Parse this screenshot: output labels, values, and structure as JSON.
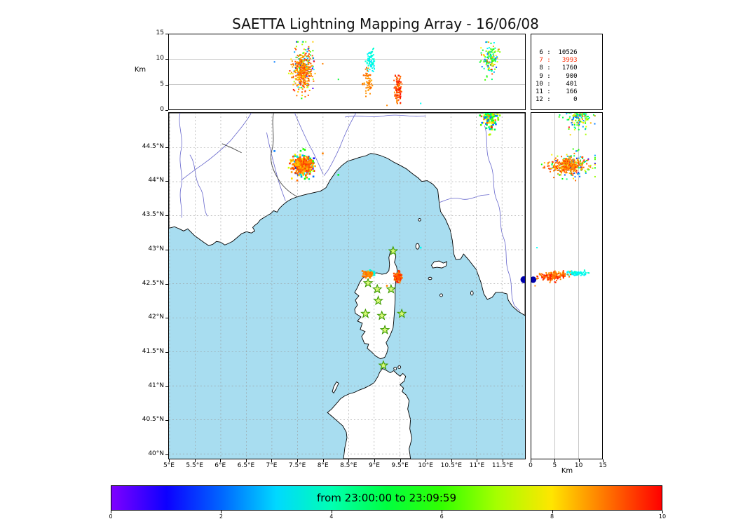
{
  "title": "SAETTA Lightning Mapping Array - 16/06/08",
  "legend": {
    "rows": [
      {
        "stations": "6",
        "count": 10526,
        "highlight": false
      },
      {
        "stations": "7",
        "count": 3993,
        "highlight": true
      },
      {
        "stations": "8",
        "count": 1760,
        "highlight": false
      },
      {
        "stations": "9",
        "count": 900,
        "highlight": false
      },
      {
        "stations": "10",
        "count": 401,
        "highlight": false
      },
      {
        "stations": "11",
        "count": 166,
        "highlight": false
      },
      {
        "stations": "12",
        "count": 0,
        "highlight": false
      }
    ]
  },
  "axes": {
    "top_panel": {
      "ylabel": "Km",
      "yticks": [
        {
          "v": 0,
          "label": "0"
        },
        {
          "v": 5,
          "label": "5"
        },
        {
          "v": 10,
          "label": "10"
        },
        {
          "v": 15,
          "label": "15"
        }
      ],
      "grid_alt": [
        5,
        10
      ]
    },
    "right_panel": {
      "xlabel": "Km",
      "xticks": [
        {
          "v": 0,
          "label": "0"
        },
        {
          "v": 5,
          "label": "5"
        },
        {
          "v": 10,
          "label": "10"
        },
        {
          "v": 15,
          "label": "15"
        }
      ],
      "grid_alt": [
        5,
        10
      ]
    },
    "map": {
      "lon_ticks": [
        {
          "v": 5,
          "label": "5°E"
        },
        {
          "v": 5.5,
          "label": "5.5°E"
        },
        {
          "v": 6,
          "label": "6°E"
        },
        {
          "v": 6.5,
          "label": "6.5°E"
        },
        {
          "v": 7,
          "label": "7°E"
        },
        {
          "v": 7.5,
          "label": "7.5°E"
        },
        {
          "v": 8,
          "label": "8°E"
        },
        {
          "v": 8.5,
          "label": "8.5°E"
        },
        {
          "v": 9,
          "label": "9°E"
        },
        {
          "v": 9.5,
          "label": "9.5°E"
        },
        {
          "v": 10,
          "label": "10°E"
        },
        {
          "v": 10.5,
          "label": "10.5°E"
        },
        {
          "v": 11,
          "label": "11°E"
        },
        {
          "v": 11.5,
          "label": "11.5°E"
        }
      ],
      "lat_ticks": [
        {
          "v": 40,
          "label": "40°N"
        },
        {
          "v": 40.5,
          "label": "40.5°N"
        },
        {
          "v": 41,
          "label": "41°N"
        },
        {
          "v": 41.5,
          "label": "41.5°N"
        },
        {
          "v": 42,
          "label": "42°N"
        },
        {
          "v": 42.5,
          "label": "42.5°N"
        },
        {
          "v": 43,
          "label": "43°N"
        },
        {
          "v": 43.5,
          "label": "43.5°N"
        },
        {
          "v": 44,
          "label": "44°N"
        },
        {
          "v": 44.5,
          "label": "44.5°N"
        }
      ]
    }
  },
  "colorbar": {
    "label": "from 23:00:00 to 23:09:59",
    "min": 0,
    "max": 10,
    "ticks": [
      {
        "v": 0,
        "label": "0"
      },
      {
        "v": 2,
        "label": "2"
      },
      {
        "v": 4,
        "label": "4"
      },
      {
        "v": 6,
        "label": "6"
      },
      {
        "v": 8,
        "label": "8"
      },
      {
        "v": 10,
        "label": "10"
      }
    ]
  },
  "colors": {
    "sea": "#a8ddf0",
    "land": "#ffffff",
    "coast": "#000000",
    "grid": "#999999",
    "panel_grid": "#aaaaaa",
    "river": "#6666cc",
    "border": "#444444",
    "station_fill": "#d8f878",
    "station_edge": "#3d9b00",
    "highlight_red": "#ff2a00",
    "offshore_marker": "#0000aa"
  },
  "chart_data": {
    "type": "scatter",
    "title": "SAETTA Lightning Mapping Array - 16/06/08",
    "panels": [
      {
        "id": "altitude-vs-longitude",
        "xlim": [
          4.99,
          11.95
        ],
        "ylabel": "Km",
        "ylim": [
          0,
          15
        ],
        "yticks": [
          0,
          5,
          10,
          15
        ],
        "grid": [
          5,
          10
        ]
      },
      {
        "id": "map-latitude-vs-longitude",
        "xlim": [
          4.99,
          11.95
        ],
        "ylim": [
          39.93,
          45.01
        ],
        "xticks": [
          5,
          5.5,
          6,
          6.5,
          7,
          7.5,
          8,
          8.5,
          9,
          9.5,
          10,
          10.5,
          11,
          11.5
        ],
        "yticks": [
          40,
          40.5,
          41,
          41.5,
          42,
          42.5,
          43,
          43.5,
          44,
          44.5
        ],
        "grid": "dashed"
      },
      {
        "id": "altitude-vs-latitude",
        "xlabel": "Km",
        "xlim": [
          0,
          15
        ],
        "ylim": [
          39.93,
          45.01
        ],
        "xticks": [
          0,
          5,
          10,
          15
        ],
        "grid": [
          5,
          10
        ]
      }
    ],
    "color_scale": {
      "type": "rainbow",
      "range_minutes": [
        0,
        10
      ],
      "label": "from 23:00:00 to 23:09:59"
    },
    "clusters": [
      {
        "name": "piedmont-halo",
        "n": 130,
        "lon_mean": 7.62,
        "lon_sd": 0.13,
        "lat_mean": 44.24,
        "lat_sd": 0.09,
        "alt_mean": 8.5,
        "alt_sd": 2.4,
        "alt_range": [
          2,
          13.5
        ],
        "t_min": 0.3,
        "t_max": 9.9
      },
      {
        "name": "piedmont-core",
        "n": 310,
        "lon_mean": 7.6,
        "lon_sd": 0.08,
        "lat_mean": 44.23,
        "lat_sd": 0.055,
        "alt_mean": 7.6,
        "alt_sd": 1.7,
        "alt_range": [
          2.5,
          13
        ],
        "t_min": 8.2,
        "t_max": 9.6
      },
      {
        "name": "north-italy",
        "n": 150,
        "lon_mean": 11.26,
        "lon_sd": 0.08,
        "lat_mean": 44.95,
        "lat_sd": 0.08,
        "alt_mean": 10.2,
        "alt_sd": 1.5,
        "alt_range": [
          5.5,
          13.5
        ],
        "t_min": 1.8,
        "t_max": 9.4
      },
      {
        "name": "corsica-west-cyan",
        "n": 75,
        "lon_mean": 8.93,
        "lon_sd": 0.045,
        "lat_mean": 42.66,
        "lat_sd": 0.018,
        "alt_mean": 9.9,
        "alt_sd": 1.0,
        "alt_range": [
          7.6,
          12.2
        ],
        "t_min": 3.0,
        "t_max": 3.9
      },
      {
        "name": "corsica-west-orange",
        "n": 60,
        "lon_mean": 8.88,
        "lon_sd": 0.05,
        "lat_mean": 42.64,
        "lat_sd": 0.02,
        "alt_mean": 5.6,
        "alt_sd": 1.6,
        "alt_range": [
          2.6,
          9.0
        ],
        "t_min": 8.5,
        "t_max": 9.2
      },
      {
        "name": "corsica-east",
        "n": 130,
        "lon_mean": 9.47,
        "lon_sd": 0.035,
        "lat_mean": 42.6,
        "lat_sd": 0.028,
        "alt_mean": 4.0,
        "alt_sd": 1.4,
        "alt_range": [
          1.2,
          6.8
        ],
        "t_min": 8.7,
        "t_max": 10.0
      }
    ],
    "singles": [
      {
        "lon": 9.91,
        "lat": 43.03,
        "alt": 1.2,
        "t": 3.4
      },
      {
        "lon": 9.25,
        "lat": 42.47,
        "alt": 0.8,
        "t": 8.8
      },
      {
        "lon": 11.3,
        "lat": 44.8,
        "alt": 8.0,
        "t": 9.95
      },
      {
        "lon": 7.05,
        "lat": 44.45,
        "alt": 9.5,
        "t": 2.2
      },
      {
        "lon": 8.3,
        "lat": 44.1,
        "alt": 6.0,
        "t": 5.1
      }
    ],
    "stations": [
      {
        "lon": 9.37,
        "lat": 42.98
      },
      {
        "lon": 8.88,
        "lat": 42.51
      },
      {
        "lon": 9.06,
        "lat": 42.42
      },
      {
        "lon": 9.33,
        "lat": 42.42
      },
      {
        "lon": 9.08,
        "lat": 42.25
      },
      {
        "lon": 8.83,
        "lat": 42.06
      },
      {
        "lon": 9.15,
        "lat": 42.03
      },
      {
        "lon": 9.54,
        "lat": 42.06
      },
      {
        "lon": 9.21,
        "lat": 41.82
      },
      {
        "lon": 9.18,
        "lat": 41.3
      }
    ],
    "offshore_marker": {
      "lon": 11.93,
      "lat": 42.56,
      "alt": 0.4
    }
  }
}
